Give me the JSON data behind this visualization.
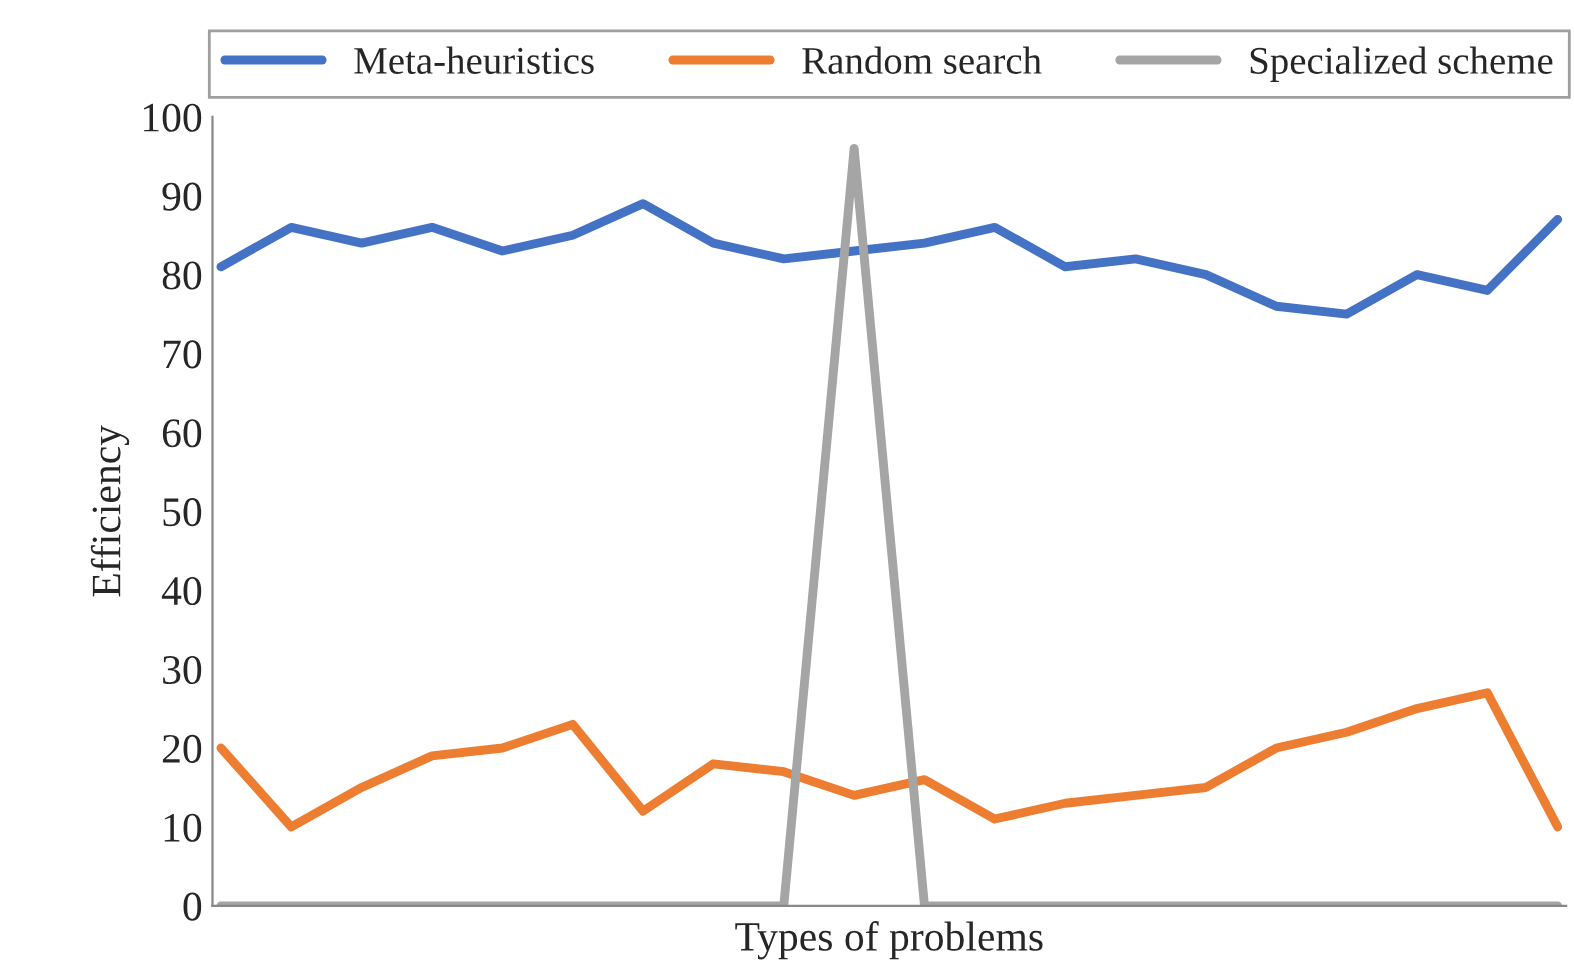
{
  "chart_data": {
    "type": "line",
    "xlabel": "Types of problems",
    "ylabel": "Efficiency",
    "categories": [
      null,
      null,
      null,
      null,
      null,
      null,
      null,
      null,
      null,
      null,
      null,
      null,
      null,
      null,
      null,
      null,
      null,
      null,
      null,
      null
    ],
    "series": [
      {
        "name": "Meta-heuristics",
        "color": "#4472c4",
        "values": [
          81,
          86,
          84,
          86,
          83,
          85,
          89,
          84,
          82,
          83,
          84,
          86,
          81,
          82,
          80,
          76,
          75,
          80,
          78,
          87
        ]
      },
      {
        "name": "Random search",
        "color": "#ed7d31",
        "values": [
          20,
          10,
          15,
          19,
          20,
          23,
          12,
          18,
          17,
          14,
          16,
          11,
          13,
          14,
          15,
          20,
          22,
          25,
          27,
          10
        ]
      },
      {
        "name": "Specialized scheme",
        "color": "#a5a5a5",
        "values": [
          0,
          0,
          0,
          0,
          0,
          0,
          0,
          0,
          0,
          96,
          0,
          0,
          0,
          0,
          0,
          0,
          0,
          0,
          0,
          0
        ]
      }
    ],
    "ylim": [
      0,
      100
    ],
    "yticks": [
      0,
      10,
      20,
      30,
      40,
      50,
      60,
      70,
      80,
      90,
      100
    ],
    "grid": false,
    "legend": "top",
    "marker": "none",
    "line_style": "solid"
  }
}
